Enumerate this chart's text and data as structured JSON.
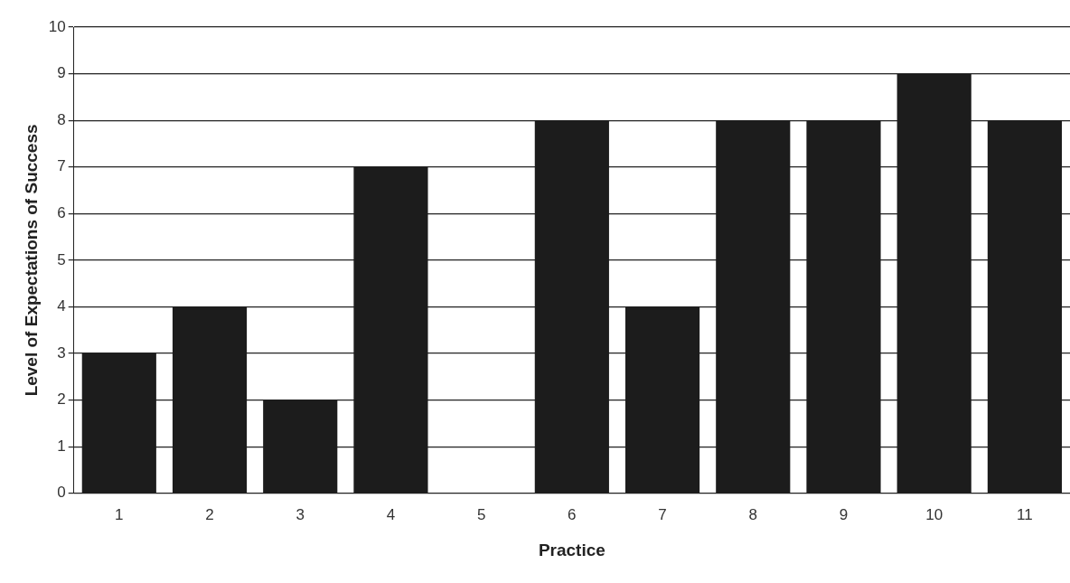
{
  "chart_data": {
    "type": "bar",
    "xlabel": "Practice",
    "ylabel": "Level of Expectations of Success",
    "categories": [
      "1",
      "2",
      "3",
      "4",
      "5",
      "6",
      "7",
      "8",
      "9",
      "10",
      "11"
    ],
    "values": [
      3,
      4,
      2,
      7,
      0,
      8,
      4,
      8,
      8,
      9,
      8
    ],
    "color": "#1c1c1c",
    "ylim": [
      0,
      10
    ],
    "yticks": [
      0,
      1,
      2,
      3,
      4,
      5,
      6,
      7,
      8,
      9,
      10
    ],
    "grid": "y",
    "legend": false
  }
}
